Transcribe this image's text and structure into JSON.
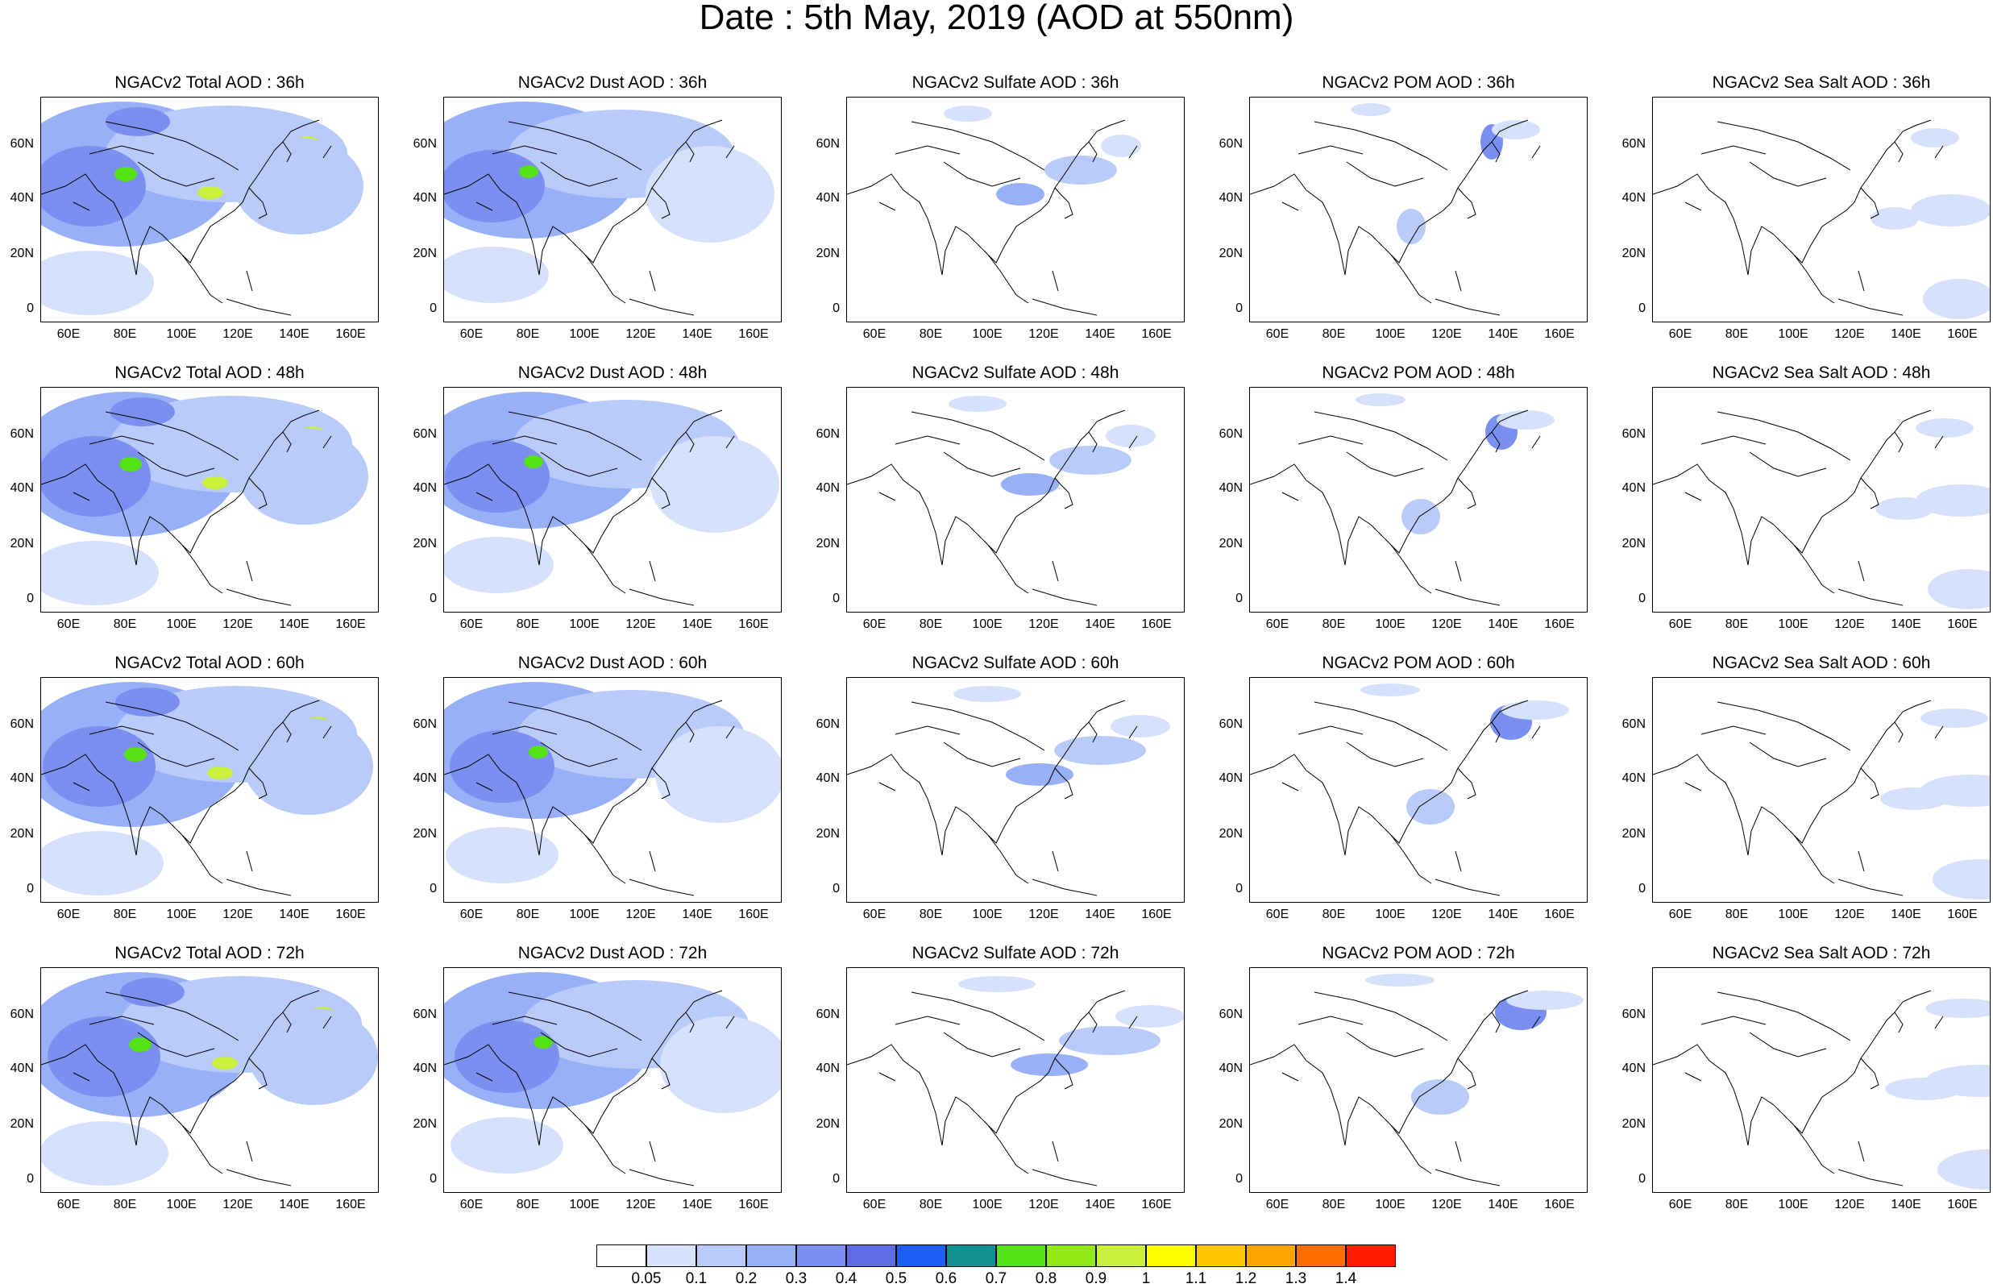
{
  "title": "Date : 5th May, 2019 (AOD at 550nm)",
  "panels": [
    [
      "NGACv2 Total AOD : 36h",
      "NGACv2 Dust AOD : 36h",
      "NGACv2 Sulfate AOD : 36h",
      "NGACv2 POM AOD : 36h",
      "NGACv2 Sea Salt AOD : 36h"
    ],
    [
      "NGACv2 Total AOD : 48h",
      "NGACv2 Dust AOD : 48h",
      "NGACv2 Sulfate AOD : 48h",
      "NGACv2 POM AOD : 48h",
      "NGACv2 Sea Salt AOD : 48h"
    ],
    [
      "NGACv2 Total AOD : 60h",
      "NGACv2 Dust AOD : 60h",
      "NGACv2 Sulfate AOD : 60h",
      "NGACv2 POM AOD : 60h",
      "NGACv2 Sea Salt AOD : 60h"
    ],
    [
      "NGACv2 Total AOD : 72h",
      "NGACv2 Dust AOD : 72h",
      "NGACv2 Sulfate AOD : 72h",
      "NGACv2 POM AOD : 72h",
      "NGACv2 Sea Salt  AOD : 72h"
    ]
  ],
  "axes": {
    "lat_labels": [
      "60N",
      "40N",
      "20N",
      "0"
    ],
    "lon_labels": [
      "60E",
      "80E",
      "100E",
      "120E",
      "140E",
      "160E"
    ]
  },
  "colorbar": {
    "labels": [
      "0.05",
      "0.1",
      "0.2",
      "0.3",
      "0.4",
      "0.5",
      "0.6",
      "0.7",
      "0.8",
      "0.9",
      "1",
      "1.1",
      "1.2",
      "1.3",
      "1.4"
    ],
    "colors": [
      "#ffffff",
      "#d6e2fd",
      "#b9cbfb",
      "#97b0f8",
      "#7a8ff0",
      "#5d6be5",
      "#1e5ff6",
      "#129090",
      "#55e214",
      "#92ea17",
      "#c9f03a",
      "#ffff00",
      "#ffc800",
      "#ffa500",
      "#ff6e00",
      "#ff1e00"
    ]
  }
}
